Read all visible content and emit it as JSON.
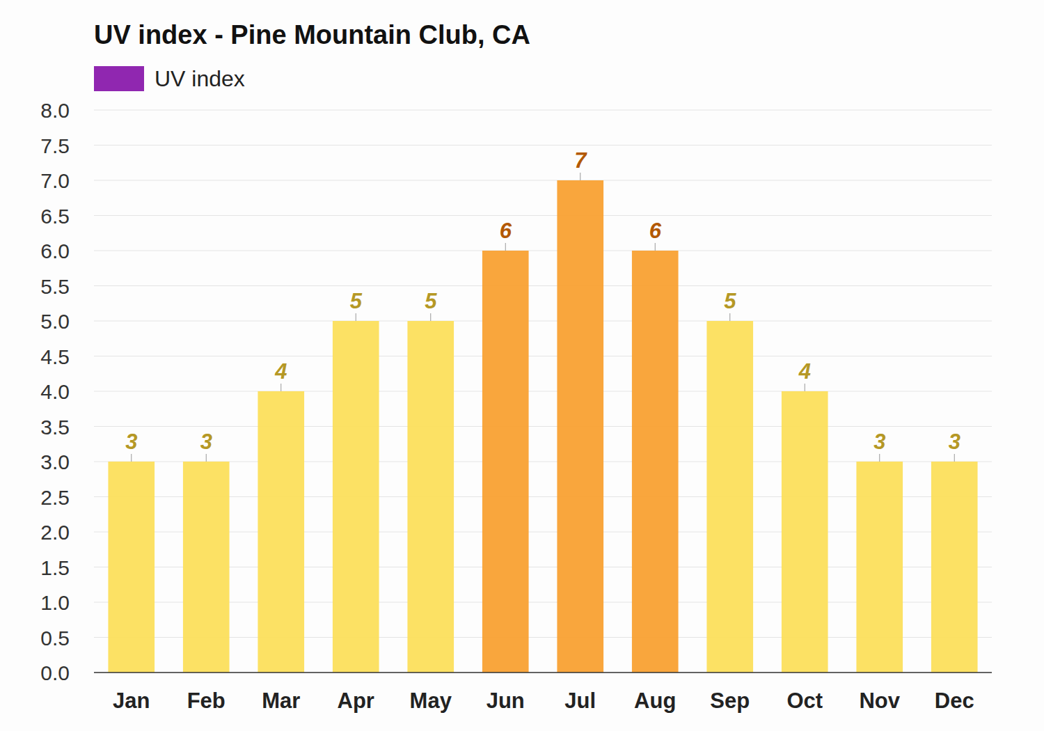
{
  "chart_data": {
    "type": "bar",
    "title": "UV index - Pine Mountain Club, CA",
    "categories": [
      "Jan",
      "Feb",
      "Mar",
      "Apr",
      "May",
      "Jun",
      "Jul",
      "Aug",
      "Sep",
      "Oct",
      "Nov",
      "Dec"
    ],
    "series": [
      {
        "name": "UV index",
        "color": "#9027b0",
        "colors": [
          "#fcdf5c",
          "#fcdf5c",
          "#fcdf5c",
          "#fcdf5c",
          "#fcdf5c",
          "#f9a133",
          "#f9a133",
          "#f9a133",
          "#fcdf5c",
          "#fcdf5c",
          "#fcdf5c",
          "#fcdf5c"
        ],
        "values": [
          3,
          3,
          4,
          5,
          5,
          6,
          7,
          6,
          5,
          4,
          3,
          3
        ]
      }
    ],
    "ylim": [
      0,
      8
    ],
    "yticks": [
      {
        "value": 0,
        "label": "0.0"
      },
      {
        "value": 0.5,
        "label": "0.5"
      },
      {
        "value": 1,
        "label": "1.0"
      },
      {
        "value": 1.5,
        "label": "1.5"
      },
      {
        "value": 2,
        "label": "2.0"
      },
      {
        "value": 2.5,
        "label": "2.5"
      },
      {
        "value": 3,
        "label": "3.0"
      },
      {
        "value": 3.5,
        "label": "3.5"
      },
      {
        "value": 4,
        "label": "4.0"
      },
      {
        "value": 4.5,
        "label": "4.5"
      },
      {
        "value": 5,
        "label": "5.0"
      },
      {
        "value": 5.5,
        "label": "5.5"
      },
      {
        "value": 6,
        "label": "6.0"
      },
      {
        "value": 6.5,
        "label": "6.5"
      },
      {
        "value": 7,
        "label": "7.0"
      },
      {
        "value": 7.5,
        "label": "7.5"
      },
      {
        "value": 8,
        "label": "8.0"
      }
    ],
    "grid": true,
    "data_labels": true,
    "legend": "top-left"
  }
}
